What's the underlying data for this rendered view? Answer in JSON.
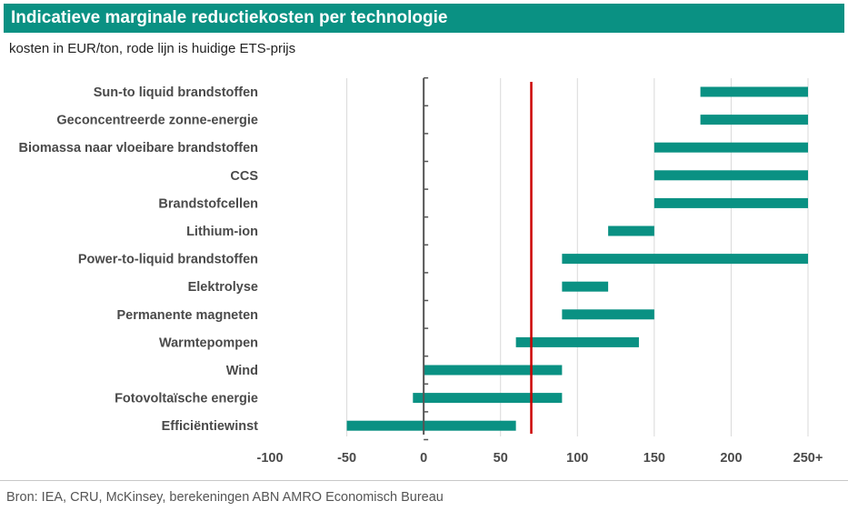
{
  "header": {
    "title": "Indicatieve marginale reductiekosten per technologie",
    "subtitle": "kosten in EUR/ton, rode lijn is huidige ETS-prijs"
  },
  "footer": {
    "source": "Bron: IEA, CRU, McKinsey, berekeningen ABN AMRO Economisch Bureau"
  },
  "colors": {
    "header_bg": "#0a9183",
    "bar": "#0a9183",
    "ets_line": "#cc0000",
    "grid": "#d9d9d9",
    "axis": "#555555"
  },
  "chart_data": {
    "type": "bar",
    "orientation": "horizontal-range",
    "title": "Indicatieve marginale reductiekosten per technologie",
    "xlabel": "",
    "ylabel": "",
    "xlim": [
      -100,
      250
    ],
    "xticks": [
      -100,
      -50,
      0,
      50,
      100,
      150,
      200,
      250
    ],
    "xtick_labels": [
      "-100",
      "-50",
      "0",
      "50",
      "100",
      "150",
      "200",
      "250+"
    ],
    "grid": true,
    "ets_price": 70,
    "categories": [
      "Sun-to liquid brandstoffen",
      "Geconcentreerde zonne-energie",
      "Biomassa naar vloeibare brandstoffen",
      "CCS",
      "Brandstofcellen",
      "Lithium-ion",
      "Power-to-liquid brandstoffen",
      "Elektrolyse",
      "Permanente magneten",
      "Warmtepompen",
      "Wind",
      "Fotovoltaïsche energie",
      "Efficiëntiewinst"
    ],
    "ranges": [
      [
        180,
        250
      ],
      [
        180,
        250
      ],
      [
        150,
        250
      ],
      [
        150,
        250
      ],
      [
        150,
        250
      ],
      [
        120,
        150
      ],
      [
        90,
        250
      ],
      [
        90,
        120
      ],
      [
        90,
        150
      ],
      [
        60,
        140
      ],
      [
        0,
        90
      ],
      [
        -7,
        90
      ],
      [
        -50,
        60
      ]
    ]
  }
}
